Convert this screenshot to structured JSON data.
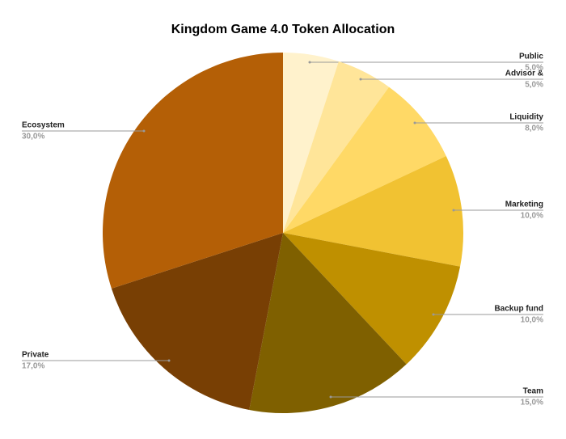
{
  "chart_data": {
    "type": "pie",
    "title": "Kingdom Game 4.0 Token Allocation",
    "categories": [
      "Public",
      "Advisor &",
      "Liquidity",
      "Marketing",
      "Backup fund",
      "Team",
      "Private",
      "Ecosystem"
    ],
    "values": [
      5,
      5,
      8,
      10,
      10,
      15,
      17,
      30
    ],
    "value_labels": [
      "5,0%",
      "5,0%",
      "8,0%",
      "10,0%",
      "10,0%",
      "15,0%",
      "17,0%",
      "30,0%"
    ],
    "colors": [
      "#fff2cc",
      "#ffe599",
      "#ffd966",
      "#f1c232",
      "#bf9000",
      "#7f6000",
      "#783f04",
      "#b45f06"
    ]
  }
}
